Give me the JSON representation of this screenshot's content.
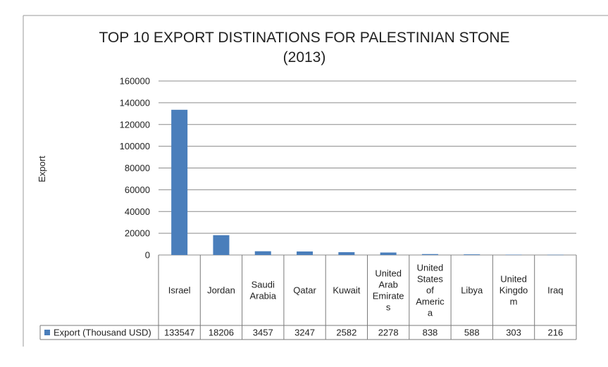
{
  "chart_data": {
    "type": "bar",
    "title": "TOP 10 EXPORT DISTINATIONS FOR PALESTINIAN STONE",
    "subtitle": "(2013)",
    "ylabel": "Export",
    "xlabel": "",
    "ylim": [
      0,
      160000
    ],
    "yticks": [
      "160000",
      "140000",
      "120000",
      "100000",
      "80000",
      "60000",
      "40000",
      "20000",
      "0"
    ],
    "grid": true,
    "legend_position": "data-table",
    "categories": [
      [
        "Israel"
      ],
      [
        "Jordan"
      ],
      [
        "Saudi",
        "Arabia"
      ],
      [
        "Qatar"
      ],
      [
        "Kuwait"
      ],
      [
        "United",
        "Arab",
        "Emirate",
        "s"
      ],
      [
        "United",
        "States",
        "of",
        "Americ",
        "a"
      ],
      [
        "Libya"
      ],
      [
        "United",
        "Kingdo",
        "m"
      ],
      [
        "Iraq"
      ]
    ],
    "series": [
      {
        "name": "Export (Thousand USD)",
        "values": [
          133547,
          18206,
          3457,
          3247,
          2582,
          2278,
          838,
          588,
          303,
          216
        ],
        "value_labels": [
          "133547",
          "18206",
          "3457",
          "3247",
          "2582",
          "2278",
          "838",
          "588",
          "303",
          "216"
        ],
        "color": "#4a7ebb"
      }
    ]
  }
}
